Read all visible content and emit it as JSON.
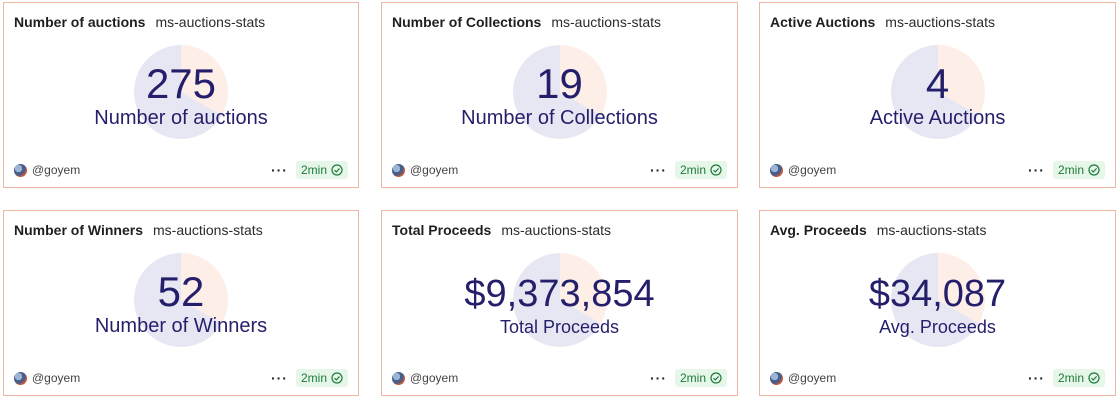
{
  "cards": [
    {
      "title": "Number of auctions",
      "subtitle": "ms-auctions-stats",
      "value": "275",
      "label": "Number of auctions",
      "author": "@goyem",
      "refresh": "2min"
    },
    {
      "title": "Number of Collections",
      "subtitle": "ms-auctions-stats",
      "value": "19",
      "label": "Number of Collections",
      "author": "@goyem",
      "refresh": "2min"
    },
    {
      "title": "Active Auctions",
      "subtitle": "ms-auctions-stats",
      "value": "4",
      "label": "Active Auctions",
      "author": "@goyem",
      "refresh": "2min"
    },
    {
      "title": "Number of Winners",
      "subtitle": "ms-auctions-stats",
      "value": "52",
      "label": "Number of Winners",
      "author": "@goyem",
      "refresh": "2min"
    },
    {
      "title": "Total Proceeds",
      "subtitle": "ms-auctions-stats",
      "value": "$9,373,854",
      "label": "Total Proceeds",
      "author": "@goyem",
      "refresh": "2min"
    },
    {
      "title": "Avg. Proceeds",
      "subtitle": "ms-auctions-stats",
      "value": "$34,087",
      "label": "Avg. Proceeds",
      "author": "@goyem",
      "refresh": "2min"
    }
  ],
  "more_menu_glyph": "···",
  "colors": {
    "border": "#ecb7a3",
    "value_text": "#241f6b",
    "badge_bg": "#e6f7ea",
    "badge_text": "#1e7a39"
  }
}
